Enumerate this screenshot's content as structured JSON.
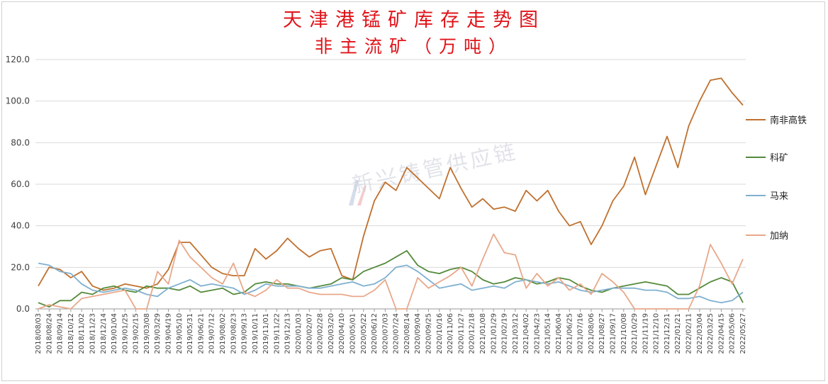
{
  "chart_data": {
    "type": "line",
    "title": "天津港锰矿库存走势图",
    "subtitle": "非主流矿（万吨）",
    "ylim": [
      0,
      120
    ],
    "yticks": [
      "0.0",
      "20.0",
      "40.0",
      "60.0",
      "80.0",
      "100.0",
      "120.0"
    ],
    "grid": "horizontal",
    "legend_position": "right",
    "watermark": "新兴铸管供应链",
    "categories": [
      "2018/08/03",
      "2018/08/24",
      "2018/09/14",
      "2018/10/12",
      "2018/11/02",
      "2018/11/23",
      "2018/12/14",
      "2019/01/04",
      "2019/01/25",
      "2019/02/15",
      "2019/03/08",
      "2019/03/29",
      "2019/04/19",
      "2019/05/10",
      "2019/05/31",
      "2019/06/21",
      "2019/07/12",
      "2019/08/02",
      "2019/08/23",
      "2019/09/13",
      "2019/10/11",
      "2019/11/01",
      "2019/11/22",
      "2019/12/13",
      "2020/01/03",
      "2020/02/07",
      "2020/02/28",
      "2020/03/20",
      "2020/04/10",
      "2020/05/01",
      "2020/05/22",
      "2020/06/12",
      "2020/07/03",
      "2020/07/24",
      "2020/08/14",
      "2020/09/04",
      "2020/09/25",
      "2020/10/16",
      "2020/11/06",
      "2020/11/27",
      "2020/12/18",
      "2021/01/08",
      "2021/01/29",
      "2021/02/19",
      "2021/03/12",
      "2021/04/02",
      "2021/04/23",
      "2021/05/14",
      "2021/06/04",
      "2021/06/25",
      "2021/07/16",
      "2021/08/06",
      "2021/08/27",
      "2021/09/17",
      "2021/10/08",
      "2021/10/29",
      "2021/11/19",
      "2021/12/10",
      "2021/12/31",
      "2022/01/21",
      "2022/02/11",
      "2022/03/04",
      "2022/03/25",
      "2022/04/15",
      "2022/05/06",
      "2022/05/27"
    ],
    "x_tick_labels": [
      "2018/08/03",
      "2018/08/24",
      "2018/09/14",
      "2018/10/12",
      "2018/11/02",
      "2018/11/23",
      "2018/12/14",
      "2019/01/04",
      "2019/01/25",
      "2019/02/15",
      "2019/03/08",
      "2019/03/29",
      "2019/04/19",
      "2019/05/10",
      "2019/05/31",
      "2019/06/21",
      "2019/07/12",
      "2019/08/02",
      "2019/08/23",
      "2019/09/13",
      "2019/10/11",
      "2019/11/01",
      "2019/11/22",
      "2019/12/13",
      "2020/01/03",
      "2020/02/07",
      "2020/02/28",
      "2020/03/20",
      "2020/04/10",
      "2020/05/01",
      "2020/05/22",
      "2020/06/12",
      "2020/07/03",
      "2020/07/24",
      "2020/08/14",
      "2020/09/04",
      "2020/09/25",
      "2020/10/16",
      "2020/11/06",
      "2020/11/27",
      "2020/12/18",
      "2021/01/08",
      "2021/01/29",
      "2021/02/19",
      "2021/03/12",
      "2021/04/02",
      "2021/04/23",
      "2021/05/14",
      "2021/06/04",
      "2021/06/25",
      "2021/07/16",
      "2021/08/06",
      "2021/08/27",
      "2021/09/17",
      "2021/10/08",
      "2021/10/29",
      "2021/11/19",
      "2021/12/10",
      "2021/12/31",
      "2022/01/21",
      "2022/02/11",
      "2022/03/04",
      "2022/03/25",
      "2022/04/15",
      "2022/05/06",
      "2022/05/27"
    ],
    "series": [
      {
        "name": "南非高铁",
        "color": "#c0702e",
        "values": [
          11,
          20,
          19,
          15,
          18,
          11,
          9,
          10,
          12,
          11,
          10,
          12,
          19,
          32,
          32,
          26,
          20,
          17,
          16,
          16,
          29,
          24,
          28,
          34,
          29,
          25,
          28,
          29,
          16,
          14,
          35,
          52,
          61,
          57,
          68,
          63,
          58,
          53,
          68,
          58,
          49,
          53,
          48,
          49,
          47,
          57,
          52,
          57,
          47,
          40,
          42,
          31,
          40,
          52,
          59,
          73,
          55,
          69,
          83,
          68,
          88,
          100,
          110,
          111,
          104,
          98
        ]
      },
      {
        "name": "科矿",
        "color": "#548a3a",
        "values": [
          3,
          1,
          4,
          4,
          8,
          7,
          10,
          11,
          9,
          8,
          11,
          10,
          10,
          9,
          11,
          8,
          9,
          10,
          7,
          8,
          12,
          13,
          12,
          12,
          11,
          10,
          11,
          12,
          15,
          14,
          18,
          20,
          22,
          25,
          28,
          21,
          18,
          17,
          19,
          20,
          18,
          14,
          12,
          13,
          15,
          14,
          12,
          13,
          15,
          14,
          11,
          9,
          8,
          10,
          11,
          12,
          13,
          12,
          11,
          7,
          7,
          10,
          13,
          15,
          13,
          3
        ]
      },
      {
        "name": "马来",
        "color": "#7fb0d0",
        "values": [
          22,
          21,
          18,
          17,
          12,
          9,
          8,
          9,
          10,
          9,
          7,
          6,
          10,
          12,
          14,
          11,
          12,
          11,
          10,
          7,
          9,
          12,
          11,
          11,
          11,
          10,
          10,
          11,
          12,
          13,
          11,
          12,
          15,
          20,
          21,
          18,
          14,
          10,
          11,
          12,
          9,
          10,
          11,
          10,
          13,
          14,
          13,
          12,
          13,
          11,
          9,
          8,
          9,
          10,
          10,
          10,
          9,
          9,
          8,
          5,
          5,
          6,
          4,
          3,
          4,
          8
        ]
      },
      {
        "name": "加纳",
        "color": "#e8a88a",
        "values": [
          0,
          2,
          1,
          0,
          5,
          6,
          7,
          8,
          9,
          0,
          0,
          18,
          12,
          33,
          25,
          20,
          15,
          12,
          22,
          8,
          6,
          9,
          14,
          10,
          10,
          8,
          7,
          7,
          7,
          6,
          6,
          9,
          14,
          0,
          0,
          15,
          10,
          13,
          16,
          20,
          11,
          24,
          36,
          27,
          26,
          10,
          17,
          11,
          15,
          9,
          12,
          7,
          17,
          13,
          8,
          0,
          0,
          0,
          0,
          0,
          0,
          11,
          31,
          22,
          12,
          24
        ]
      }
    ]
  }
}
